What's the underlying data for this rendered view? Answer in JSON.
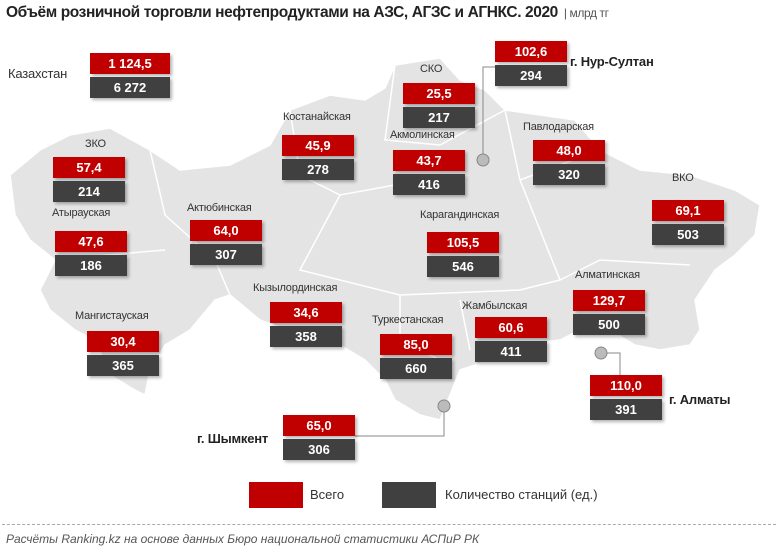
{
  "title": "Объём розничной торговли нефтепродуктами на АЗС, АГЗС и АГНКС. 2020",
  "unit": "| млрд тг",
  "colors": {
    "total": "#c00000",
    "stations": "#404040",
    "map": "#e4e4e4"
  },
  "regions": [
    {
      "name": "Казахстан",
      "total": "1 124,5",
      "stations": "6 272"
    },
    {
      "name": "г. Нур-Султан",
      "total": "102,6",
      "stations": "294"
    },
    {
      "name": "СКО",
      "total": "25,5",
      "stations": "217"
    },
    {
      "name": "Костанайская",
      "total": "45,9",
      "stations": "278"
    },
    {
      "name": "Акмолинская",
      "total": "43,7",
      "stations": "416"
    },
    {
      "name": "Павлодарская",
      "total": "48,0",
      "stations": "320"
    },
    {
      "name": "ЗКО",
      "total": "57,4",
      "stations": "214"
    },
    {
      "name": "ВКО",
      "total": "69,1",
      "stations": "503"
    },
    {
      "name": "Атырауская",
      "total": "47,6",
      "stations": "186"
    },
    {
      "name": "Актюбинская",
      "total": "64,0",
      "stations": "307"
    },
    {
      "name": "Карагандинская",
      "total": "105,5",
      "stations": "546"
    },
    {
      "name": "Алматинская",
      "total": "129,7",
      "stations": "500"
    },
    {
      "name": "Кызылординская",
      "total": "34,6",
      "stations": "358"
    },
    {
      "name": "Жамбылская",
      "total": "60,6",
      "stations": "411"
    },
    {
      "name": "Мангистауская",
      "total": "30,4",
      "stations": "365"
    },
    {
      "name": "Туркестанская",
      "total": "85,0",
      "stations": "660"
    },
    {
      "name": "г. Алматы",
      "total": "110,0",
      "stations": "391"
    },
    {
      "name": "г. Шымкент",
      "total": "65,0",
      "stations": "306"
    }
  ],
  "legend": {
    "total": "Всего",
    "stations": "Количество станций (ед.)"
  },
  "source": "Расчёты Ranking.kz на основе данных Бюро национальной статистики АСПиР РК"
}
